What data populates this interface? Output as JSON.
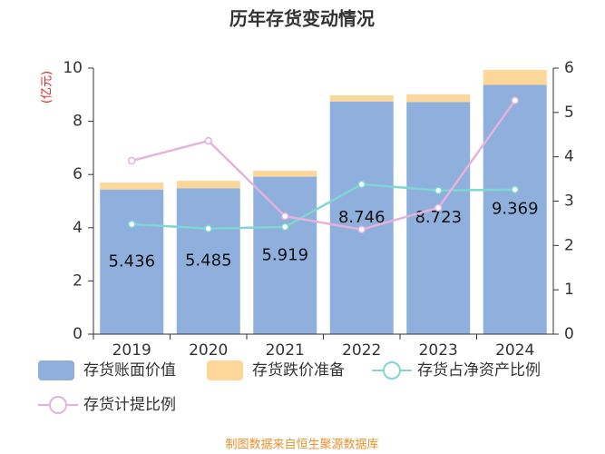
{
  "chart_data": {
    "type": "bar",
    "title": "历年存货变动情况",
    "y_label": "(亿元)",
    "source": "制图数据来自恒生聚源数据库",
    "categories": [
      "2019",
      "2020",
      "2021",
      "2022",
      "2023",
      "2024"
    ],
    "series": [
      {
        "name": "存货账面价值",
        "type": "bar",
        "color": "#8fb0dd",
        "values": [
          5.436,
          5.485,
          5.919,
          8.746,
          8.723,
          9.369
        ],
        "show_labels": true
      },
      {
        "name": "存货跌价准备",
        "type": "bar",
        "color": "#fdd69a",
        "values": [
          0.26,
          0.28,
          0.22,
          0.23,
          0.29,
          0.56
        ]
      },
      {
        "name": "存货占净资产比例",
        "type": "line",
        "axis": "y2",
        "color": "#7fd6d2",
        "values": [
          2.48,
          2.38,
          2.42,
          3.38,
          3.24,
          3.26
        ]
      },
      {
        "name": "存货计提比例",
        "type": "line",
        "axis": "y2",
        "color": "#e5b2dc",
        "values": [
          3.91,
          4.36,
          2.66,
          2.36,
          2.85,
          5.27
        ]
      }
    ],
    "ylim": [
      0,
      10
    ],
    "yticks": [
      0,
      2,
      4,
      6,
      8,
      10
    ],
    "y2lim": [
      0,
      6
    ],
    "y2ticks": [
      0,
      1,
      2,
      3,
      4,
      5,
      6
    ],
    "stacked": true
  }
}
